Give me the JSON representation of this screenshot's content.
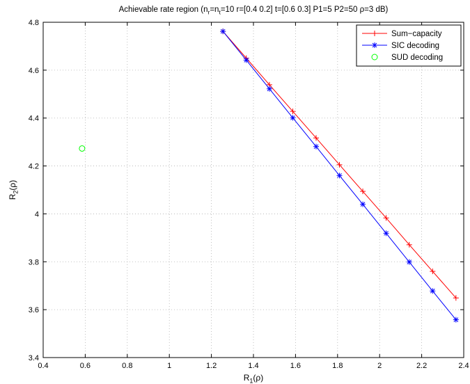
{
  "chart_data": {
    "type": "line",
    "title": {
      "prefix": "Achievable rate region (n",
      "sub1": "r",
      "mid1": "=n",
      "sub2": "t",
      "suffix": "=10 r=[0.4 0.2] t=[0.6 0.3] P1=5 P2=50 ρ=3 dB)"
    },
    "xlabel": {
      "main": "R",
      "sub": "1",
      "rest": "(ρ)"
    },
    "ylabel": {
      "main": "R",
      "sub": "2",
      "rest": "(ρ)"
    },
    "xlim": [
      0.4,
      2.4
    ],
    "ylim": [
      3.4,
      4.8
    ],
    "xticks": [
      "0.4",
      "0.6",
      "0.8",
      "1",
      "1.2",
      "1.4",
      "1.6",
      "1.8",
      "2",
      "2.2",
      "2.4"
    ],
    "yticks": [
      "3.4",
      "3.6",
      "3.8",
      "4",
      "4.2",
      "4.4",
      "4.6",
      "4.8"
    ],
    "grid": true,
    "legend_position": "top-right",
    "series": [
      {
        "name": "Sum−capacity",
        "color": "#ff0000",
        "marker": "plus",
        "line": true,
        "x": [
          1.255,
          1.366,
          1.476,
          1.587,
          1.698,
          1.809,
          1.92,
          2.031,
          2.141,
          2.252,
          2.363
        ],
        "y": [
          4.762,
          4.65,
          4.539,
          4.428,
          4.317,
          4.205,
          4.094,
          3.983,
          3.871,
          3.76,
          3.649
        ]
      },
      {
        "name": "SIC decoding",
        "color": "#0000ff",
        "marker": "asterisk",
        "line": true,
        "x": [
          1.255,
          1.366,
          1.476,
          1.587,
          1.698,
          1.809,
          1.92,
          2.031,
          2.141,
          2.252,
          2.363
        ],
        "y": [
          4.762,
          4.642,
          4.522,
          4.401,
          4.281,
          4.16,
          4.04,
          3.919,
          3.799,
          3.678,
          3.558
        ]
      },
      {
        "name": "SUD decoding",
        "color": "#00ff00",
        "marker": "circle",
        "line": false,
        "x": [
          0.585
        ],
        "y": [
          4.273
        ]
      }
    ]
  }
}
